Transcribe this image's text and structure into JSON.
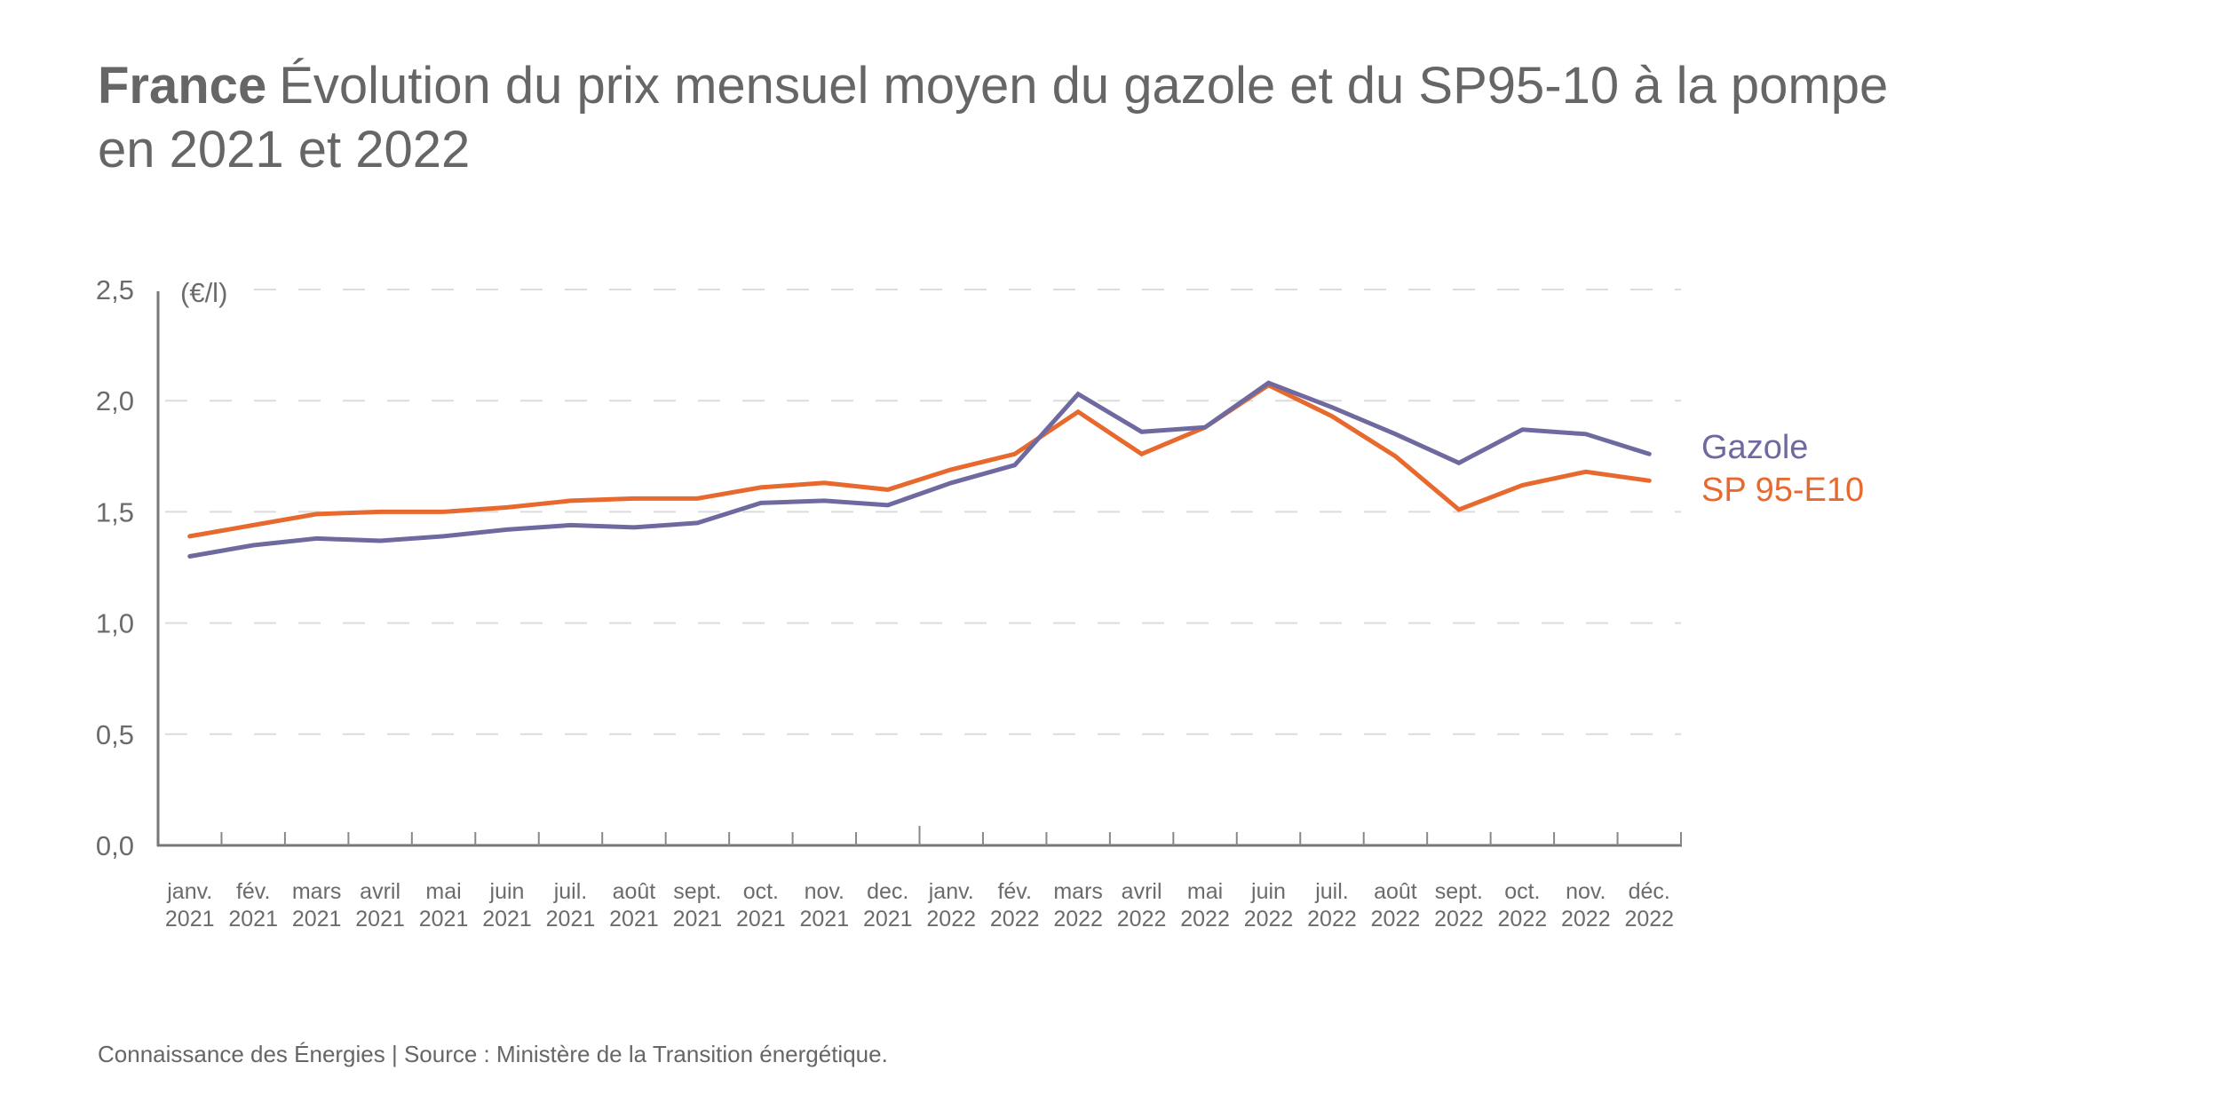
{
  "header": {
    "title_bold": "France",
    "title_line1": "Évolution du prix mensuel moyen du gazole et du SP95-10 à la pompe",
    "title_line2": "en 2021 et 2022"
  },
  "footer": {
    "credit": "Connaissance des Énergies | Source : Ministère de la Transition énergétique."
  },
  "chart_data": {
    "type": "line",
    "title": "France Évolution du prix mensuel moyen du gazole et du SP95-10 à la pompe en 2021 et 2022",
    "xlabel": "",
    "ylabel": "(€/l)",
    "ylim": [
      0,
      2.5
    ],
    "yticks": [
      0,
      0.5,
      1.0,
      1.5,
      2.0,
      2.5
    ],
    "ytick_labels": [
      "0,0",
      "0,5",
      "1,0",
      "1,5",
      "2,0",
      "2,5"
    ],
    "grid": true,
    "legend_position": "right",
    "categories": [
      {
        "month": "janv.",
        "year": "2021"
      },
      {
        "month": "fév.",
        "year": "2021"
      },
      {
        "month": "mars",
        "year": "2021"
      },
      {
        "month": "avril",
        "year": "2021"
      },
      {
        "month": "mai",
        "year": "2021"
      },
      {
        "month": "juin",
        "year": "2021"
      },
      {
        "month": "juil.",
        "year": "2021"
      },
      {
        "month": "août",
        "year": "2021"
      },
      {
        "month": "sept.",
        "year": "2021"
      },
      {
        "month": "oct.",
        "year": "2021"
      },
      {
        "month": "nov.",
        "year": "2021"
      },
      {
        "month": "dec.",
        "year": "2021"
      },
      {
        "month": "janv.",
        "year": "2022"
      },
      {
        "month": "fév.",
        "year": "2022"
      },
      {
        "month": "mars",
        "year": "2022"
      },
      {
        "month": "avril",
        "year": "2022"
      },
      {
        "month": "mai",
        "year": "2022"
      },
      {
        "month": "juin",
        "year": "2022"
      },
      {
        "month": "juil.",
        "year": "2022"
      },
      {
        "month": "août",
        "year": "2022"
      },
      {
        "month": "sept.",
        "year": "2022"
      },
      {
        "month": "oct.",
        "year": "2022"
      },
      {
        "month": "nov.",
        "year": "2022"
      },
      {
        "month": "déc.",
        "year": "2022"
      }
    ],
    "series": [
      {
        "name": "Gazole",
        "color": "#6e6aa0",
        "values": [
          1.3,
          1.35,
          1.38,
          1.37,
          1.39,
          1.42,
          1.44,
          1.43,
          1.45,
          1.54,
          1.55,
          1.53,
          1.63,
          1.71,
          2.03,
          1.86,
          1.88,
          2.08,
          1.97,
          1.85,
          1.72,
          1.87,
          1.85,
          1.76
        ]
      },
      {
        "name": "SP 95-E10",
        "color": "#e8692e",
        "values": [
          1.39,
          1.44,
          1.49,
          1.5,
          1.5,
          1.52,
          1.55,
          1.56,
          1.56,
          1.61,
          1.63,
          1.6,
          1.69,
          1.76,
          1.95,
          1.76,
          1.88,
          2.07,
          1.93,
          1.75,
          1.51,
          1.62,
          1.68,
          1.64
        ]
      }
    ]
  }
}
